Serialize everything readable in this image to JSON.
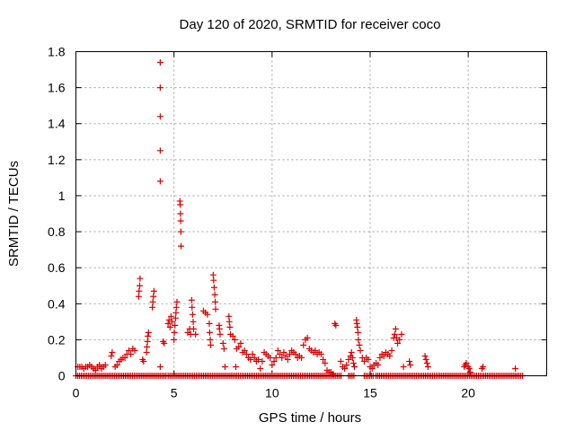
{
  "chart_data": {
    "type": "scatter",
    "title": "Day 120 of 2020, SRMTID for receiver coco",
    "xlabel": "GPS time / hours",
    "ylabel": "SRMTID / TECUs",
    "xlim": [
      0,
      24
    ],
    "ylim": [
      0,
      1.8
    ],
    "xticks": [
      0,
      5,
      10,
      15,
      20
    ],
    "xtick_labels": [
      "0",
      "5",
      "10",
      "15",
      "20"
    ],
    "yticks": [
      0,
      0.2,
      0.4,
      0.6,
      0.8,
      1,
      1.2,
      1.4,
      1.6,
      1.8
    ],
    "ytick_labels": [
      "0",
      "0.2",
      "0.4",
      "0.6",
      "0.8",
      "1",
      "1.2",
      "1.4",
      "1.6",
      "1.8"
    ],
    "grid": true,
    "marker": "+",
    "color": "#dd0000",
    "series": [
      {
        "name": "SRMTID",
        "points": [
          [
            0.1,
            0.05
          ],
          [
            0.2,
            0.05
          ],
          [
            0.3,
            0.05
          ],
          [
            0.4,
            0.04
          ],
          [
            0.5,
            0.05
          ],
          [
            0.6,
            0.05
          ],
          [
            0.7,
            0.06
          ],
          [
            0.8,
            0.05
          ],
          [
            0.9,
            0.04
          ],
          [
            1.0,
            0.03
          ],
          [
            1.1,
            0.05
          ],
          [
            1.2,
            0.06
          ],
          [
            1.3,
            0.04
          ],
          [
            1.4,
            0.05
          ],
          [
            1.5,
            0.06
          ],
          [
            1.8,
            0.11
          ],
          [
            1.85,
            0.13
          ],
          [
            2.0,
            0.05
          ],
          [
            2.1,
            0.06
          ],
          [
            2.2,
            0.08
          ],
          [
            2.3,
            0.09
          ],
          [
            2.4,
            0.1
          ],
          [
            2.5,
            0.1
          ],
          [
            2.6,
            0.12
          ],
          [
            2.7,
            0.14
          ],
          [
            2.8,
            0.12
          ],
          [
            2.9,
            0.15
          ],
          [
            3.0,
            0.14
          ],
          [
            3.2,
            0.44
          ],
          [
            3.22,
            0.47
          ],
          [
            3.25,
            0.5
          ],
          [
            3.27,
            0.54
          ],
          [
            3.4,
            0.09
          ],
          [
            3.45,
            0.08
          ],
          [
            3.6,
            0.13
          ],
          [
            3.62,
            0.16
          ],
          [
            3.65,
            0.19
          ],
          [
            3.67,
            0.22
          ],
          [
            3.7,
            0.24
          ],
          [
            3.9,
            0.38
          ],
          [
            3.92,
            0.41
          ],
          [
            3.95,
            0.44
          ],
          [
            3.98,
            0.47
          ],
          [
            4.3,
            1.74
          ],
          [
            4.3,
            1.6
          ],
          [
            4.3,
            1.44
          ],
          [
            4.3,
            1.25
          ],
          [
            4.3,
            1.08
          ],
          [
            4.3,
            0.05
          ],
          [
            4.45,
            0.19
          ],
          [
            4.5,
            0.18
          ],
          [
            4.7,
            0.29
          ],
          [
            4.75,
            0.31
          ],
          [
            4.8,
            0.27
          ],
          [
            4.85,
            0.33
          ],
          [
            4.9,
            0.3
          ],
          [
            5.0,
            0.2
          ],
          [
            5.02,
            0.24
          ],
          [
            5.05,
            0.28
          ],
          [
            5.08,
            0.32
          ],
          [
            5.1,
            0.35
          ],
          [
            5.12,
            0.38
          ],
          [
            5.15,
            0.41
          ],
          [
            5.3,
            0.97
          ],
          [
            5.32,
            0.95
          ],
          [
            5.33,
            0.9
          ],
          [
            5.34,
            0.86
          ],
          [
            5.35,
            0.8
          ],
          [
            5.36,
            0.72
          ],
          [
            5.7,
            0.24
          ],
          [
            5.8,
            0.26
          ],
          [
            5.85,
            0.23
          ],
          [
            5.9,
            0.42
          ],
          [
            5.92,
            0.38
          ],
          [
            5.95,
            0.34
          ],
          [
            5.98,
            0.3
          ],
          [
            6.0,
            0.26
          ],
          [
            6.1,
            0.23
          ],
          [
            6.5,
            0.36
          ],
          [
            6.6,
            0.35
          ],
          [
            6.7,
            0.34
          ],
          [
            6.8,
            0.29
          ],
          [
            6.82,
            0.24
          ],
          [
            6.85,
            0.2
          ],
          [
            6.87,
            0.17
          ],
          [
            7.0,
            0.56
          ],
          [
            7.02,
            0.53
          ],
          [
            7.05,
            0.49
          ],
          [
            7.08,
            0.45
          ],
          [
            7.1,
            0.41
          ],
          [
            7.12,
            0.37
          ],
          [
            7.3,
            0.28
          ],
          [
            7.32,
            0.26
          ],
          [
            7.35,
            0.23
          ],
          [
            7.5,
            0.18
          ],
          [
            7.55,
            0.15
          ],
          [
            7.6,
            0.05
          ],
          [
            7.8,
            0.33
          ],
          [
            7.82,
            0.3
          ],
          [
            7.85,
            0.27
          ],
          [
            7.88,
            0.23
          ],
          [
            8.0,
            0.22
          ],
          [
            8.1,
            0.2
          ],
          [
            8.15,
            0.05
          ],
          [
            8.2,
            0.15
          ],
          [
            8.3,
            0.16
          ],
          [
            8.4,
            0.18
          ],
          [
            8.5,
            0.13
          ],
          [
            8.6,
            0.14
          ],
          [
            8.7,
            0.12
          ],
          [
            8.8,
            0.1
          ],
          [
            8.9,
            0.09
          ],
          [
            9.0,
            0.12
          ],
          [
            9.1,
            0.1
          ],
          [
            9.2,
            0.08
          ],
          [
            9.3,
            0.09
          ],
          [
            9.4,
            0.04
          ],
          [
            9.5,
            0.08
          ],
          [
            9.6,
            0.13
          ],
          [
            9.7,
            0.12
          ],
          [
            9.8,
            0.11
          ],
          [
            9.9,
            0.1
          ],
          [
            10.0,
            0.06
          ],
          [
            10.1,
            0.08
          ],
          [
            10.2,
            0.1
          ],
          [
            10.3,
            0.14
          ],
          [
            10.4,
            0.12
          ],
          [
            10.5,
            0.1
          ],
          [
            10.6,
            0.13
          ],
          [
            10.7,
            0.11
          ],
          [
            10.8,
            0.09
          ],
          [
            10.9,
            0.12
          ],
          [
            11.0,
            0.14
          ],
          [
            11.1,
            0.13
          ],
          [
            11.2,
            0.12
          ],
          [
            11.3,
            0.1
          ],
          [
            11.4,
            0.11
          ],
          [
            11.5,
            0.1
          ],
          [
            11.6,
            0.17
          ],
          [
            11.7,
            0.2
          ],
          [
            11.8,
            0.21
          ],
          [
            11.9,
            0.15
          ],
          [
            12.0,
            0.14
          ],
          [
            12.1,
            0.13
          ],
          [
            12.2,
            0.14
          ],
          [
            12.3,
            0.12
          ],
          [
            12.4,
            0.13
          ],
          [
            12.5,
            0.12
          ],
          [
            12.6,
            0.09
          ],
          [
            12.7,
            0.07
          ],
          [
            12.8,
            0.03
          ],
          [
            12.9,
            0.02
          ],
          [
            13.0,
            0.02
          ],
          [
            13.1,
            0.01
          ],
          [
            13.2,
            0.29
          ],
          [
            13.25,
            0.28
          ],
          [
            13.5,
            0.08
          ],
          [
            13.6,
            0.05
          ],
          [
            13.7,
            0.04
          ],
          [
            13.8,
            0.06
          ],
          [
            13.9,
            0.09
          ],
          [
            14.0,
            0.11
          ],
          [
            14.05,
            0.13
          ],
          [
            14.1,
            0.1
          ],
          [
            14.15,
            0.07
          ],
          [
            14.2,
            0.05
          ],
          [
            14.3,
            0.31
          ],
          [
            14.32,
            0.29
          ],
          [
            14.35,
            0.27
          ],
          [
            14.38,
            0.24
          ],
          [
            14.4,
            0.2
          ],
          [
            14.45,
            0.17
          ],
          [
            14.5,
            0.14
          ],
          [
            14.6,
            0.1
          ],
          [
            14.7,
            0.08
          ],
          [
            14.8,
            0.1
          ],
          [
            14.9,
            0.09
          ],
          [
            15.0,
            0.05
          ],
          [
            15.1,
            0.04
          ],
          [
            15.2,
            0.06
          ],
          [
            15.3,
            0.07
          ],
          [
            15.4,
            0.06
          ],
          [
            15.5,
            0.1
          ],
          [
            15.6,
            0.12
          ],
          [
            15.7,
            0.11
          ],
          [
            15.8,
            0.13
          ],
          [
            15.9,
            0.12
          ],
          [
            16.0,
            0.11
          ],
          [
            16.1,
            0.14
          ],
          [
            16.2,
            0.21
          ],
          [
            16.25,
            0.23
          ],
          [
            16.3,
            0.26
          ],
          [
            16.35,
            0.21
          ],
          [
            16.4,
            0.18
          ],
          [
            16.5,
            0.2
          ],
          [
            16.6,
            0.23
          ],
          [
            16.7,
            0.05
          ],
          [
            17.0,
            0.08
          ],
          [
            17.05,
            0.06
          ],
          [
            17.8,
            0.11
          ],
          [
            17.85,
            0.09
          ],
          [
            17.9,
            0.07
          ],
          [
            17.95,
            0.05
          ],
          [
            19.8,
            0.05
          ],
          [
            19.85,
            0.06
          ],
          [
            19.9,
            0.07
          ],
          [
            20.0,
            0.05
          ],
          [
            20.05,
            0.04
          ],
          [
            20.1,
            0.02
          ],
          [
            20.7,
            0.04
          ],
          [
            20.75,
            0.05
          ],
          [
            22.4,
            0.04
          ]
        ]
      }
    ],
    "zero_band": {
      "segments": [
        [
          0.0,
          4.6
        ],
        [
          4.7,
          13.6
        ],
        [
          13.9,
          14.2
        ],
        [
          14.7,
          15.2
        ],
        [
          15.3,
          22.8
        ]
      ]
    }
  }
}
